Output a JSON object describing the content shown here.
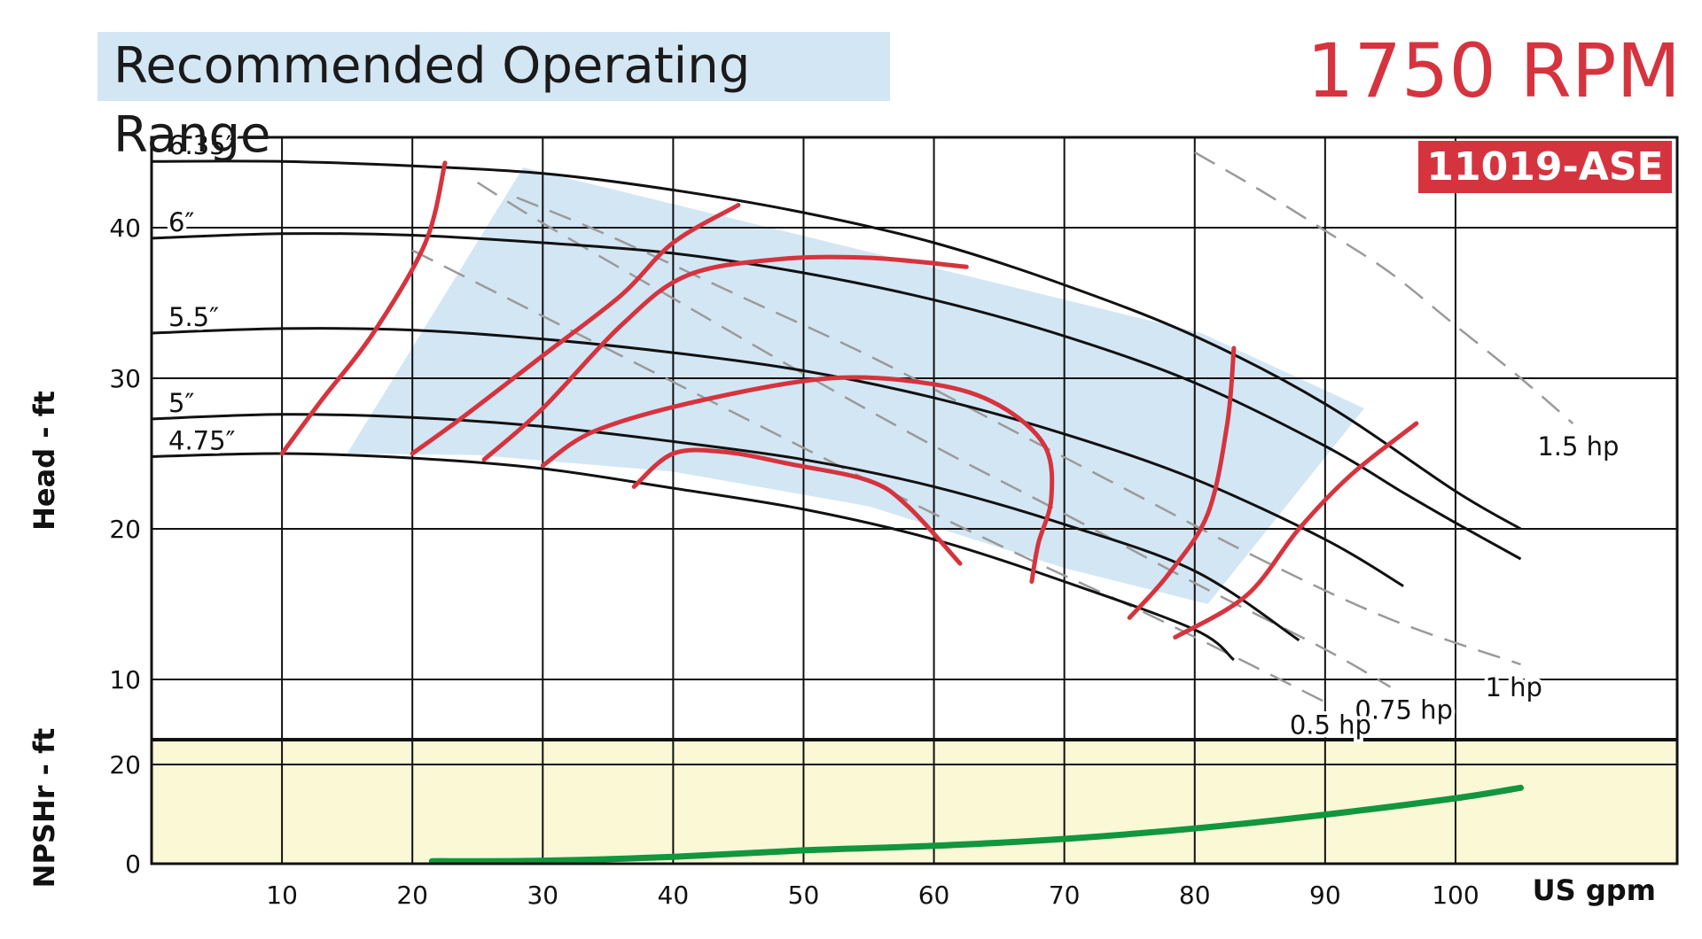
{
  "header": {
    "legend_label": "Recommended Operating Range",
    "speed": "1750 RPM",
    "model": "11019-ASE"
  },
  "colors": {
    "operating_range_fill": "#d3e6f4",
    "npsh_panel_fill": "#fbf8d6",
    "efficiency_curve": "#d5343e",
    "npshr_curve": "#12963e",
    "power_line": "#9a9a9a",
    "head_curve": "#111111",
    "accent_red": "#d5343e"
  },
  "chart_data": [
    {
      "type": "line",
      "xlabel": "US gpm",
      "ylabel": "Head - ft",
      "xlim": [
        0,
        117
      ],
      "ylim": [
        6,
        46
      ],
      "x_ticks": [
        10,
        20,
        30,
        40,
        50,
        60,
        70,
        80,
        90,
        100
      ],
      "y_ticks": [
        10,
        20,
        30,
        40
      ],
      "grid": true,
      "series": [
        {
          "name": "6.35″",
          "kind": "impeller",
          "points": [
            [
              0,
              44.4
            ],
            [
              10,
              44.4
            ],
            [
              20,
              44.1
            ],
            [
              30,
              43.6
            ],
            [
              40,
              42.5
            ],
            [
              50,
              41
            ],
            [
              60,
              39
            ],
            [
              70,
              36.2
            ],
            [
              80,
              32.8
            ],
            [
              90,
              28.3
            ],
            [
              100,
              22.5
            ],
            [
              105,
              20
            ]
          ]
        },
        {
          "name": "6″",
          "kind": "impeller",
          "points": [
            [
              0,
              39.3
            ],
            [
              10,
              39.6
            ],
            [
              20,
              39.5
            ],
            [
              30,
              39
            ],
            [
              40,
              38.3
            ],
            [
              50,
              37
            ],
            [
              60,
              35.2
            ],
            [
              70,
              32.8
            ],
            [
              80,
              29.7
            ],
            [
              90,
              25.5
            ],
            [
              96,
              22.4
            ],
            [
              100,
              20.4
            ],
            [
              105,
              18
            ]
          ]
        },
        {
          "name": "5.5″",
          "kind": "impeller",
          "points": [
            [
              0,
              33
            ],
            [
              10,
              33.3
            ],
            [
              20,
              33.2
            ],
            [
              30,
              32.6
            ],
            [
              40,
              31.7
            ],
            [
              50,
              30.5
            ],
            [
              60,
              28.7
            ],
            [
              70,
              26.3
            ],
            [
              80,
              23.3
            ],
            [
              90,
              19.3
            ],
            [
              96,
              16.2
            ]
          ]
        },
        {
          "name": "5″",
          "kind": "impeller",
          "points": [
            [
              0,
              27.3
            ],
            [
              10,
              27.6
            ],
            [
              20,
              27.4
            ],
            [
              30,
              26.8
            ],
            [
              40,
              25.8
            ],
            [
              50,
              24.6
            ],
            [
              60,
              22.8
            ],
            [
              70,
              20.3
            ],
            [
              80,
              17.2
            ],
            [
              88,
              12.6
            ]
          ]
        },
        {
          "name": "4.75″",
          "kind": "impeller",
          "points": [
            [
              0,
              24.8
            ],
            [
              10,
              25
            ],
            [
              20,
              24.7
            ],
            [
              30,
              24
            ],
            [
              40,
              22.7
            ],
            [
              50,
              21.3
            ],
            [
              60,
              19.3
            ],
            [
              70,
              16.5
            ],
            [
              80,
              13.3
            ],
            [
              83,
              11.3
            ]
          ]
        },
        {
          "name": "1.5 hp",
          "kind": "power",
          "points": [
            [
              80,
              45
            ],
            [
              85,
              42.5
            ],
            [
              90,
              39.8
            ],
            [
              95,
              37
            ],
            [
              100,
              33.5
            ],
            [
              105,
              30
            ],
            [
              109,
              27
            ]
          ]
        },
        {
          "name": "1 hp",
          "kind": "power",
          "points": [
            [
              28,
              42
            ],
            [
              35,
              39.5
            ],
            [
              45,
              35.5
            ],
            [
              55,
              31.5
            ],
            [
              65,
              27
            ],
            [
              75,
              22.5
            ],
            [
              85,
              18
            ],
            [
              95,
              14
            ],
            [
              105,
              11
            ]
          ]
        },
        {
          "name": "0.75 hp",
          "kind": "power",
          "points": [
            [
              25,
              43
            ],
            [
              30,
              40.3
            ],
            [
              40,
              35.3
            ],
            [
              50,
              30.3
            ],
            [
              60,
              25.5
            ],
            [
              70,
              21
            ],
            [
              80,
              16.4
            ],
            [
              90,
              12
            ],
            [
              95,
              9.5
            ]
          ]
        },
        {
          "name": "0.5 hp",
          "kind": "power",
          "points": [
            [
              20,
              38.5
            ],
            [
              28,
              35
            ],
            [
              36,
              31.5
            ],
            [
              44,
              28
            ],
            [
              52,
              24.5
            ],
            [
              60,
              21
            ],
            [
              68,
              17.7
            ],
            [
              76,
              14.5
            ],
            [
              84,
              11.1
            ],
            [
              90,
              8.5
            ]
          ]
        },
        {
          "name": "",
          "kind": "efficiency",
          "points": [
            [
              10,
              25
            ],
            [
              13,
              28.5
            ],
            [
              17,
              33
            ],
            [
              21,
              39
            ],
            [
              22.5,
              44.3
            ]
          ]
        },
        {
          "name": "",
          "kind": "efficiency",
          "points": [
            [
              20,
              25
            ],
            [
              24,
              27.5
            ],
            [
              30,
              31.5
            ],
            [
              36,
              35.5
            ],
            [
              40,
              39
            ],
            [
              45,
              41.5
            ]
          ]
        },
        {
          "name": "",
          "kind": "efficiency",
          "points": [
            [
              25.5,
              24.6
            ],
            [
              30,
              28
            ],
            [
              36,
              33.5
            ],
            [
              41,
              36.8
            ],
            [
              48,
              37.9
            ],
            [
              55,
              38
            ],
            [
              62.5,
              37.4
            ]
          ]
        },
        {
          "name": "",
          "kind": "efficiency",
          "points": [
            [
              30,
              24.2
            ],
            [
              34,
              26.5
            ],
            [
              42,
              28.5
            ],
            [
              52,
              30
            ],
            [
              60,
              29.6
            ],
            [
              65,
              28.2
            ],
            [
              68.5,
              25.5
            ],
            [
              69,
              22
            ],
            [
              68,
              19
            ],
            [
              67.5,
              16.5
            ]
          ]
        },
        {
          "name": "",
          "kind": "efficiency",
          "points": [
            [
              37,
              22.8
            ],
            [
              40,
              25
            ],
            [
              44,
              25.1
            ],
            [
              49,
              24.3
            ],
            [
              55,
              23.2
            ],
            [
              58,
              21.5
            ],
            [
              62,
              17.7
            ]
          ]
        },
        {
          "name": "",
          "kind": "efficiency",
          "points": [
            [
              83,
              32
            ],
            [
              82.5,
              27
            ],
            [
              81,
              21
            ],
            [
              78,
              17
            ],
            [
              75,
              14.1
            ]
          ]
        },
        {
          "name": "",
          "kind": "efficiency",
          "points": [
            [
              97,
              27
            ],
            [
              92,
              23.6
            ],
            [
              88,
              20
            ],
            [
              84,
              15.6
            ],
            [
              78.5,
              12.8
            ]
          ]
        }
      ],
      "recommended_range": [
        [
          15,
          25
        ],
        [
          28.5,
          44
        ],
        [
          80.5,
          33
        ],
        [
          93,
          28
        ],
        [
          81,
          15
        ],
        [
          70,
          17.4
        ],
        [
          55,
          21.5
        ],
        [
          40,
          23.8
        ],
        [
          25,
          24.9
        ],
        [
          15,
          25
        ]
      ],
      "series_labels": {
        "impeller": [
          "6.35″",
          "6″",
          "5.5″",
          "5″",
          "4.75″"
        ],
        "power": [
          "1.5 hp",
          "1 hp",
          "0.75 hp",
          "0.5 hp"
        ]
      }
    },
    {
      "type": "line",
      "xlabel": "US gpm",
      "ylabel": "NPSHr - ft",
      "xlim": [
        0,
        117
      ],
      "ylim": [
        0,
        25
      ],
      "y_ticks": [
        0,
        20
      ],
      "grid": true,
      "series": [
        {
          "name": "NPSHr",
          "points": [
            [
              21.5,
              0.5
            ],
            [
              30,
              0.6
            ],
            [
              40,
              1.4
            ],
            [
              50,
              2.7
            ],
            [
              60,
              3.6
            ],
            [
              70,
              5
            ],
            [
              80,
              7.1
            ],
            [
              90,
              9.9
            ],
            [
              100,
              13.2
            ],
            [
              105,
              15.3
            ]
          ]
        }
      ]
    }
  ]
}
